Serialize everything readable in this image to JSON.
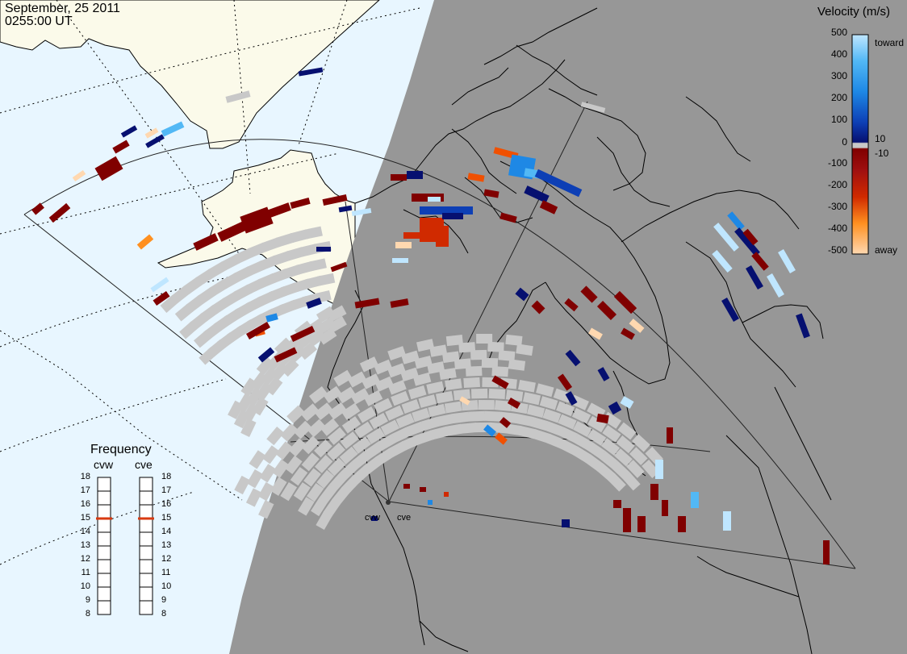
{
  "title": {
    "date": "September, 25 2011",
    "time": "0255:00 UT"
  },
  "legend": {
    "title": "Velocity (m/s)",
    "ticks": [
      "500",
      "400",
      "300",
      "200",
      "100",
      "10",
      "0",
      "-10",
      "-100",
      "-200",
      "-300",
      "-400",
      "-500"
    ],
    "toward_label": "toward",
    "away_label": "away"
  },
  "frequency_panel": {
    "title": "Frequency",
    "radars": [
      {
        "name": "cvw",
        "frequency_mhz": 15
      },
      {
        "name": "cve",
        "frequency_mhz": 15
      }
    ],
    "scale": [
      "18",
      "17",
      "16",
      "15",
      "14",
      "13",
      "12",
      "11",
      "10",
      "9",
      "8"
    ]
  },
  "sites": {
    "cvw": "cvw",
    "cve": "cve"
  },
  "colors": {
    "ocean_day": "#e8f6ff",
    "land_day": "#fbfaea",
    "night": "#979797",
    "low_velocity": "#c8c8c8",
    "toward_500": "#bfe6ff",
    "toward_400": "#52b8f5",
    "toward_300": "#1e88e5",
    "toward_100": "#0d3fb5",
    "toward_10": "#061070",
    "away_10": "#800000",
    "away_100": "#a01010",
    "away_200": "#d02a00",
    "away_300": "#f05000",
    "away_400": "#ff9020",
    "away_500": "#ffd8b0",
    "frequency_marker": "#d83a10"
  }
}
